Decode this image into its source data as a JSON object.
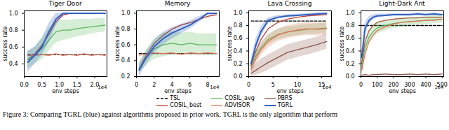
{
  "caption": "Figure 3: Comparing TGRL (blue) against algorithms proposed in prior work. TGRL is the only algorithm that perform",
  "chart_data": [
    {
      "type": "line",
      "title": "Tiger Door",
      "xlabel": "env steps",
      "ylabel": "success rate",
      "x_multiplier": "1e4",
      "grid": false,
      "legend": "bottom",
      "xlim": [
        0,
        2.35
      ],
      "xticks": [
        {
          "value": 0,
          "label": "0.0"
        },
        0.5,
        {
          "value": 1,
          "label": "1.0"
        },
        1.5,
        {
          "value": 2,
          "label": "2.0"
        }
      ],
      "ylim": [
        0.25,
        1.03
      ],
      "yticks": [
        0.4,
        0.6,
        0.8,
        {
          "value": 1,
          "label": "1.0"
        }
      ],
      "x": [
        0.1,
        0.3,
        0.5,
        0.7,
        0.9,
        1.1,
        1.3,
        1.5,
        1.7,
        1.9,
        2.1,
        2.3
      ],
      "series": [
        {
          "name": "TSL",
          "color": "#000000",
          "line_style": "dashed",
          "values": [
            0.51,
            0.51,
            0.51,
            0.51,
            0.51,
            0.51,
            0.51,
            0.51,
            0.51,
            0.51,
            0.51,
            0.51
          ]
        },
        {
          "name": "COSIL_best",
          "color": "#c0392b",
          "line_style": "solid",
          "values": [
            0.45,
            0.52,
            0.62,
            0.75,
            0.9,
            0.98,
            1.0,
            1.0,
            1.0,
            1.0,
            1.0,
            1.0
          ]
        },
        {
          "name": "COSIL_avg",
          "color": "#5cb85c",
          "line_style": "solid",
          "values": [
            0.45,
            0.5,
            0.58,
            0.68,
            0.78,
            0.8,
            0.8,
            0.82,
            0.83,
            0.84,
            0.85,
            0.86
          ],
          "lower": [
            0.35,
            0.4,
            0.45,
            0.55,
            0.65,
            0.68,
            0.7,
            0.72,
            0.74,
            0.76,
            0.77,
            0.78
          ],
          "upper": [
            0.55,
            0.6,
            0.7,
            0.82,
            0.9,
            0.92,
            0.92,
            0.93,
            0.93,
            0.93,
            0.94,
            0.94
          ]
        },
        {
          "name": "ADVISOR",
          "color": "#e8735a",
          "line_style": "solid",
          "values": [
            0.5,
            0.5,
            0.51,
            0.5,
            0.52,
            0.5,
            0.51,
            0.5,
            0.52,
            0.5,
            0.51,
            0.5
          ]
        },
        {
          "name": "PBRS",
          "color": "#8c564b",
          "line_style": "solid",
          "values": [
            null,
            null,
            null,
            null,
            null,
            null,
            null,
            null,
            null,
            null,
            null,
            null
          ]
        },
        {
          "name": "TGRL",
          "color": "#3060c0",
          "line_style": "solid",
          "values": [
            0.42,
            0.5,
            0.6,
            0.78,
            0.93,
            1.0,
            1.0,
            1.0,
            1.0,
            1.0,
            1.0,
            1.0
          ],
          "lower": [
            0.3,
            0.4,
            0.5,
            0.65,
            0.85,
            0.97,
            1.0,
            1.0,
            1.0,
            1.0,
            1.0,
            1.0
          ],
          "upper": [
            0.55,
            0.6,
            0.7,
            0.88,
            1.0,
            1.0,
            1.0,
            1.0,
            1.0,
            1.0,
            1.0,
            1.0
          ]
        }
      ]
    },
    {
      "type": "line",
      "title": "Memory",
      "xlabel": "env steps",
      "ylabel": "success rate",
      "x_multiplier": "1e4",
      "grid": false,
      "legend": "bottom",
      "xlim": [
        0,
        9.3
      ],
      "xticks": [
        0,
        2,
        4,
        6,
        8
      ],
      "ylim": [
        0.2,
        1.03
      ],
      "yticks": [
        0.2,
        0.4,
        0.6,
        0.8,
        {
          "value": 1,
          "label": "1.0"
        }
      ],
      "x": [
        0.3,
        1,
        2,
        3,
        4,
        5,
        6,
        7,
        8,
        9
      ],
      "series": [
        {
          "name": "TSL",
          "color": "#000000",
          "line_style": "dashed",
          "values": [
            0.49,
            0.49,
            0.49,
            0.49,
            0.49,
            0.49,
            0.49,
            0.49,
            0.49,
            0.49
          ]
        },
        {
          "name": "COSIL_best",
          "color": "#c0392b",
          "line_style": "solid",
          "values": [
            0.3,
            0.45,
            0.62,
            0.72,
            0.8,
            0.85,
            0.88,
            0.92,
            0.96,
            0.98
          ]
        },
        {
          "name": "COSIL_avg",
          "color": "#5cb85c",
          "line_style": "solid",
          "values": [
            0.3,
            0.42,
            0.55,
            0.6,
            0.62,
            0.6,
            0.62,
            0.6,
            0.6,
            0.6
          ],
          "lower": [
            0.25,
            0.33,
            0.42,
            0.45,
            0.48,
            0.47,
            0.48,
            0.47,
            0.47,
            0.47
          ],
          "upper": [
            0.38,
            0.52,
            0.68,
            0.75,
            0.77,
            0.75,
            0.76,
            0.74,
            0.74,
            0.74
          ]
        },
        {
          "name": "ADVISOR",
          "color": "#e8735a",
          "line_style": "solid",
          "values": [
            0.47,
            0.48,
            0.5,
            0.49,
            0.5,
            0.48,
            0.5,
            0.49,
            0.5,
            0.49
          ]
        },
        {
          "name": "PBRS",
          "color": "#8c564b",
          "line_style": "solid",
          "values": [
            null,
            null,
            null,
            null,
            null,
            null,
            null,
            null,
            null,
            null
          ]
        },
        {
          "name": "TGRL",
          "color": "#3060c0",
          "line_style": "solid",
          "values": [
            0.28,
            0.42,
            0.58,
            0.68,
            0.75,
            0.8,
            0.85,
            0.92,
            1.0,
            1.0
          ],
          "lower": [
            0.2,
            0.33,
            0.5,
            0.6,
            0.68,
            0.74,
            0.8,
            0.88,
            0.97,
            0.98
          ],
          "upper": [
            0.36,
            0.5,
            0.66,
            0.76,
            0.82,
            0.86,
            0.9,
            0.96,
            1.0,
            1.0
          ]
        }
      ]
    },
    {
      "type": "line",
      "title": "Lava Crossing",
      "xlabel": "env steps",
      "ylabel": "success rate",
      "x_multiplier": "1e4",
      "grid": false,
      "legend": "bottom",
      "xlim": [
        0,
        17
      ],
      "xticks": [
        0,
        5,
        10,
        15
      ],
      "ylim": [
        0,
        1.03
      ],
      "yticks": [
        {
          "value": 0,
          "label": "0.0"
        },
        0.2,
        0.4,
        0.6,
        0.8,
        {
          "value": 1,
          "label": "1.0"
        }
      ],
      "x": [
        0.5,
        1.5,
        2.5,
        4,
        6,
        8,
        10,
        12,
        14,
        16
      ],
      "series": [
        {
          "name": "TSL",
          "color": "#000000",
          "line_style": "dashed",
          "values": [
            0.87,
            0.87,
            0.87,
            0.87,
            0.87,
            0.87,
            0.87,
            0.87,
            0.87,
            0.87
          ]
        },
        {
          "name": "COSIL_best",
          "color": "#c0392b",
          "line_style": "solid",
          "values": [
            0.18,
            0.4,
            0.58,
            0.75,
            0.85,
            0.9,
            0.93,
            0.95,
            0.96,
            0.97
          ]
        },
        {
          "name": "COSIL_avg",
          "color": "#5cb85c",
          "line_style": "solid",
          "values": [
            0.15,
            0.33,
            0.45,
            0.58,
            0.66,
            0.7,
            0.72,
            0.74,
            0.75,
            0.76
          ],
          "lower": [
            0.07,
            0.25,
            0.37,
            0.5,
            0.58,
            0.62,
            0.64,
            0.66,
            0.67,
            0.68
          ],
          "upper": [
            0.23,
            0.41,
            0.53,
            0.66,
            0.74,
            0.78,
            0.8,
            0.82,
            0.83,
            0.84
          ]
        },
        {
          "name": "ADVISOR",
          "color": "#e8735a",
          "line_style": "solid",
          "values": [
            0.12,
            0.28,
            0.42,
            0.55,
            0.65,
            0.7,
            0.73,
            0.75,
            0.74,
            0.75
          ],
          "lower": [
            0.02,
            0.18,
            0.32,
            0.45,
            0.55,
            0.6,
            0.63,
            0.65,
            0.64,
            0.65
          ],
          "upper": [
            0.22,
            0.38,
            0.52,
            0.65,
            0.75,
            0.8,
            0.83,
            0.85,
            0.84,
            0.85
          ]
        },
        {
          "name": "PBRS",
          "color": "#8c564b",
          "line_style": "solid",
          "values": [
            0.05,
            0.1,
            0.15,
            0.22,
            0.3,
            0.38,
            0.42,
            0.46,
            0.5,
            0.55
          ],
          "lower": [
            0.0,
            0.02,
            0.05,
            0.1,
            0.18,
            0.26,
            0.3,
            0.34,
            0.38,
            0.43
          ],
          "upper": [
            0.12,
            0.2,
            0.27,
            0.34,
            0.42,
            0.5,
            0.54,
            0.58,
            0.62,
            0.67
          ]
        },
        {
          "name": "TGRL",
          "color": "#3060c0",
          "line_style": "solid",
          "values": [
            0.2,
            0.5,
            0.7,
            0.88,
            0.93,
            0.95,
            0.96,
            0.97,
            0.98,
            0.99
          ],
          "lower": [
            0.12,
            0.4,
            0.62,
            0.83,
            0.9,
            0.93,
            0.94,
            0.95,
            0.96,
            0.97
          ],
          "upper": [
            0.28,
            0.6,
            0.78,
            0.92,
            0.96,
            0.97,
            0.98,
            0.99,
            1.0,
            1.0
          ]
        }
      ]
    },
    {
      "type": "line",
      "title": "Light-Dark Ant",
      "xlabel": "env steps",
      "ylabel": "success rate",
      "x_multiplier": "1e4",
      "grid": false,
      "legend": "bottom",
      "xlim": [
        0,
        510
      ],
      "xticks": [
        0,
        100,
        200,
        300,
        400,
        500
      ],
      "ylim": [
        0,
        1.03
      ],
      "yticks": [
        {
          "value": 0,
          "label": "0.0"
        },
        0.2,
        0.4,
        0.6,
        0.8,
        {
          "value": 1,
          "label": "1.0"
        }
      ],
      "x": [
        5,
        25,
        50,
        75,
        100,
        150,
        200,
        250,
        300,
        350,
        400,
        450,
        500
      ],
      "series": [
        {
          "name": "TSL",
          "color": "#000000",
          "line_style": "dashed",
          "values": [
            0.8,
            0.8,
            0.8,
            0.8,
            0.8,
            0.8,
            0.8,
            0.8,
            0.8,
            0.8,
            0.8,
            0.8,
            0.8
          ]
        },
        {
          "name": "COSIL_best",
          "color": "#c0392b",
          "line_style": "solid",
          "values": [
            0.2,
            0.55,
            0.72,
            0.8,
            0.85,
            0.88,
            0.9,
            0.91,
            0.92,
            0.92,
            0.93,
            0.93,
            0.93
          ]
        },
        {
          "name": "COSIL_avg",
          "color": "#5cb85c",
          "line_style": "solid",
          "values": [
            0.15,
            0.45,
            0.62,
            0.7,
            0.76,
            0.8,
            0.83,
            0.85,
            0.86,
            0.87,
            0.88,
            0.89,
            0.9
          ],
          "lower": [
            0.08,
            0.35,
            0.52,
            0.6,
            0.67,
            0.72,
            0.76,
            0.78,
            0.8,
            0.81,
            0.82,
            0.83,
            0.84
          ],
          "upper": [
            0.22,
            0.55,
            0.72,
            0.8,
            0.85,
            0.88,
            0.9,
            0.92,
            0.92,
            0.93,
            0.94,
            0.95,
            0.96
          ]
        },
        {
          "name": "ADVISOR",
          "color": "#e8735a",
          "line_style": "solid",
          "values": [
            0.1,
            0.35,
            0.55,
            0.65,
            0.72,
            0.78,
            0.82,
            0.85,
            0.86,
            0.87,
            0.88,
            0.88,
            0.9
          ]
        },
        {
          "name": "PBRS",
          "color": "#8c564b",
          "line_style": "solid",
          "values": [
            0.02,
            0.03,
            0.02,
            0.03,
            0.03,
            0.04,
            0.03,
            0.03,
            0.04,
            0.03,
            0.04,
            0.03,
            0.04
          ]
        },
        {
          "name": "TGRL",
          "color": "#3060c0",
          "line_style": "solid",
          "values": [
            0.3,
            0.75,
            0.88,
            0.93,
            0.95,
            0.96,
            0.97,
            0.97,
            0.97,
            0.98,
            0.97,
            0.98,
            0.97
          ],
          "lower": [
            0.2,
            0.65,
            0.82,
            0.89,
            0.92,
            0.94,
            0.95,
            0.95,
            0.95,
            0.96,
            0.95,
            0.96,
            0.95
          ],
          "upper": [
            0.4,
            0.85,
            0.94,
            0.97,
            0.98,
            0.98,
            0.99,
            0.99,
            0.99,
            1.0,
            0.99,
            1.0,
            0.99
          ]
        }
      ]
    }
  ]
}
